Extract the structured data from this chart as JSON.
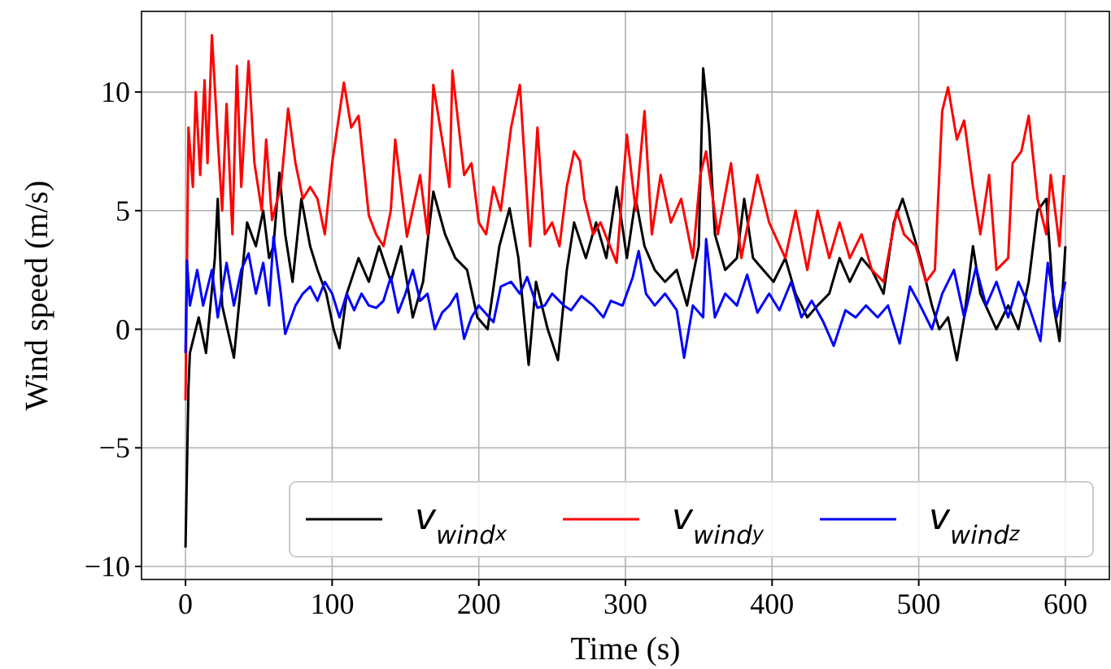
{
  "chart_data": {
    "type": "line",
    "xlabel": "Time (s)",
    "ylabel": "Wind speed (m/s)",
    "xlim": [
      -30,
      630
    ],
    "ylim": [
      -10.55,
      13.4
    ],
    "xticks": [
      0,
      100,
      200,
      300,
      400,
      500,
      600
    ],
    "yticks": [
      {
        "value": -10,
        "label": "−10"
      },
      {
        "value": -5,
        "label": "−5"
      },
      0,
      5,
      10
    ],
    "grid": true,
    "legend": "bottom right",
    "line_style": "solid",
    "series": [
      {
        "name": "v$_{wind}$$_{x}$",
        "color": "#000000",
        "x": [
          0,
          2,
          3,
          9,
          14,
          20,
          22,
          25,
          33,
          38,
          42,
          48,
          53,
          57,
          60,
          64,
          68,
          73,
          79,
          85,
          90,
          96,
          101,
          105,
          110,
          118,
          125,
          132,
          140,
          147,
          155,
          162,
          169,
          177,
          184,
          192,
          199,
          206,
          214,
          221,
          227,
          234,
          239,
          247,
          254,
          260,
          265,
          273,
          280,
          287,
          294,
          301,
          307,
          313,
          320,
          327,
          335,
          342,
          350,
          353,
          357,
          361,
          368,
          376,
          381,
          387,
          394,
          401,
          409,
          416,
          424,
          431,
          439,
          446,
          453,
          461,
          468,
          476,
          483,
          489,
          494,
          501,
          509,
          514,
          520,
          526,
          531,
          537,
          542,
          553,
          561,
          568,
          575,
          581,
          587,
          592,
          596,
          600
        ],
        "values": [
          -9.2,
          -2.5,
          -1,
          0.5,
          -1,
          3,
          5.5,
          1,
          -1.2,
          2,
          4.5,
          3.5,
          5,
          3,
          3.5,
          6.6,
          4,
          2,
          5.5,
          3.5,
          2.5,
          1.5,
          0,
          -0.8,
          1.5,
          3,
          2,
          3.5,
          2,
          3.5,
          0.5,
          2,
          5.8,
          4,
          3,
          2.5,
          0.5,
          0,
          3.5,
          5.1,
          3,
          -1.5,
          2,
          0,
          -1.3,
          2.5,
          4.5,
          3,
          4.5,
          3,
          6,
          3,
          5.5,
          3.5,
          2.5,
          2,
          2.5,
          1,
          3.5,
          11,
          8.5,
          4,
          2.5,
          3,
          5.5,
          3,
          2.5,
          2,
          3,
          1.5,
          0.5,
          1,
          1.5,
          3,
          2,
          3,
          2.5,
          1.5,
          4.5,
          5.5,
          4.5,
          3,
          1,
          0,
          0.5,
          -1.3,
          0.5,
          3.5,
          1.5,
          0,
          1,
          0,
          2,
          5,
          5.5,
          1,
          -0.5,
          3.5
        ]
      },
      {
        "name": "v$_{wind}$$_{y}$",
        "color": "#ff0000",
        "x": [
          0,
          2,
          5,
          7,
          10,
          13,
          15,
          18,
          22,
          25,
          28,
          32,
          35,
          38,
          43,
          47,
          52,
          55,
          59,
          65,
          70,
          75,
          80,
          85,
          90,
          95,
          100,
          108,
          113,
          118,
          125,
          130,
          135,
          140,
          143,
          151,
          160,
          165,
          169,
          175,
          180,
          182,
          190,
          195,
          200,
          205,
          210,
          215,
          222,
          228,
          235,
          240,
          245,
          250,
          255,
          260,
          265,
          269,
          272,
          278,
          283,
          294,
          301,
          307,
          313,
          318,
          324,
          331,
          338,
          346,
          351,
          355,
          363,
          372,
          379,
          390,
          398,
          409,
          416,
          424,
          431,
          439,
          446,
          453,
          461,
          468,
          476,
          485,
          490,
          498,
          505,
          511,
          516,
          520,
          526,
          531,
          537,
          542,
          548,
          553,
          561,
          564,
          570,
          575,
          581,
          587,
          590,
          596,
          599
        ],
        "values": [
          -3,
          8.5,
          6,
          10,
          6.5,
          10.5,
          7,
          12.4,
          8,
          5,
          9.5,
          4,
          11.1,
          6,
          11.3,
          7,
          5,
          8,
          4.6,
          6,
          9.3,
          7,
          5.5,
          6,
          5.5,
          4,
          7,
          10.4,
          8.5,
          9,
          4.8,
          4,
          3.5,
          5,
          8,
          3.9,
          6.5,
          4,
          10.3,
          8,
          6,
          10.9,
          6.5,
          7,
          4.5,
          4,
          6,
          5,
          8.5,
          10.3,
          3.5,
          8.5,
          4,
          4.5,
          3.5,
          6,
          7.5,
          7.1,
          5.5,
          4,
          4.5,
          2.8,
          8.2,
          5,
          9.2,
          4,
          6.5,
          4.5,
          5.5,
          3,
          6.5,
          7.5,
          4,
          7,
          3,
          6.5,
          4.5,
          3,
          5,
          2.5,
          5,
          3,
          4.5,
          3,
          4,
          2.5,
          2,
          5,
          4,
          3.5,
          2,
          2.5,
          9.2,
          10.2,
          8,
          8.8,
          6,
          4,
          6.5,
          2.5,
          3,
          7,
          7.5,
          9,
          5.5,
          4,
          6.5,
          3.5,
          6.5
        ]
      },
      {
        "name": "v$_{wind}$$_{z}$",
        "color": "#0000ff",
        "x": [
          0,
          1,
          3,
          8,
          12,
          18,
          22,
          28,
          33,
          38,
          43,
          48,
          53,
          57,
          60,
          65,
          68,
          75,
          80,
          85,
          90,
          95,
          100,
          105,
          110,
          115,
          120,
          125,
          130,
          135,
          140,
          145,
          150,
          155,
          160,
          165,
          170,
          175,
          180,
          185,
          190,
          195,
          200,
          210,
          215,
          222,
          228,
          233,
          240,
          245,
          250,
          258,
          263,
          270,
          278,
          285,
          290,
          298,
          305,
          309,
          314,
          320,
          327,
          335,
          340,
          346,
          353,
          355,
          361,
          368,
          376,
          383,
          390,
          398,
          405,
          413,
          420,
          427,
          435,
          442,
          450,
          457,
          464,
          472,
          479,
          487,
          494,
          501,
          509,
          516,
          524,
          531,
          539,
          546,
          553,
          561,
          568,
          575,
          583,
          588,
          594,
          600
        ],
        "values": [
          -1,
          2.9,
          1,
          2.5,
          1,
          2.5,
          0.5,
          2.8,
          1,
          2.5,
          3.2,
          1.5,
          2.8,
          1,
          3.9,
          1.5,
          -0.2,
          1,
          1.5,
          1.8,
          1.2,
          2,
          1.5,
          0.5,
          1.5,
          0.8,
          1.5,
          1,
          0.9,
          1.2,
          2.2,
          0.7,
          1.5,
          2.5,
          1.2,
          1.5,
          0,
          0.7,
          1,
          1.5,
          -0.4,
          0.5,
          1,
          0.3,
          1.8,
          2,
          1.5,
          2.2,
          0.9,
          1,
          1.5,
          1,
          0.8,
          1.4,
          1,
          0.5,
          1.2,
          1,
          2.2,
          3.3,
          1.5,
          1,
          1.5,
          0.8,
          -1.2,
          1,
          0.5,
          3.8,
          0.5,
          1.5,
          1,
          2.3,
          0.7,
          1.5,
          0.8,
          2,
          0.5,
          1.2,
          0.3,
          -0.7,
          0.8,
          0.5,
          1,
          0.5,
          1,
          -0.6,
          1.8,
          1,
          0,
          1.5,
          2.5,
          0.5,
          2.6,
          1,
          2,
          0.5,
          2,
          1,
          -0.5,
          2.8,
          0.5,
          2
        ]
      }
    ]
  }
}
